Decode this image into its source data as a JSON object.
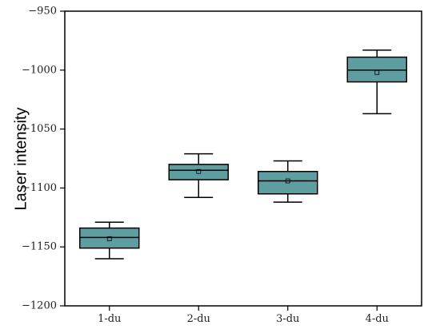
{
  "chart_data": {
    "type": "box",
    "ylabel": "Laser intensity",
    "xlabel": "",
    "ylim": [
      -1200,
      -950
    ],
    "yticks": [
      -950,
      -1000,
      -1050,
      -1100,
      -1150,
      -1200
    ],
    "categories": [
      "1-du",
      "2-du",
      "3-du",
      "4-du"
    ],
    "boxes": [
      {
        "category": "1-du",
        "whisker_low": -1160,
        "q1": -1151,
        "median": -1142,
        "q3": -1134,
        "whisker_high": -1129,
        "mean": -1143
      },
      {
        "category": "2-du",
        "whisker_low": -1108,
        "q1": -1093,
        "median": -1085,
        "q3": -1080,
        "whisker_high": -1071,
        "mean": -1086
      },
      {
        "category": "3-du",
        "whisker_low": -1112,
        "q1": -1105,
        "median": -1094,
        "q3": -1086,
        "whisker_high": -1077,
        "mean": -1094
      },
      {
        "category": "4-du",
        "whisker_low": -1037,
        "q1": -1010,
        "median": -1000,
        "q3": -989,
        "whisker_high": -983,
        "mean": -1002
      }
    ],
    "box_color": "#5f9ea0",
    "edge_color": "#000000",
    "grid": false,
    "legend": "none"
  }
}
